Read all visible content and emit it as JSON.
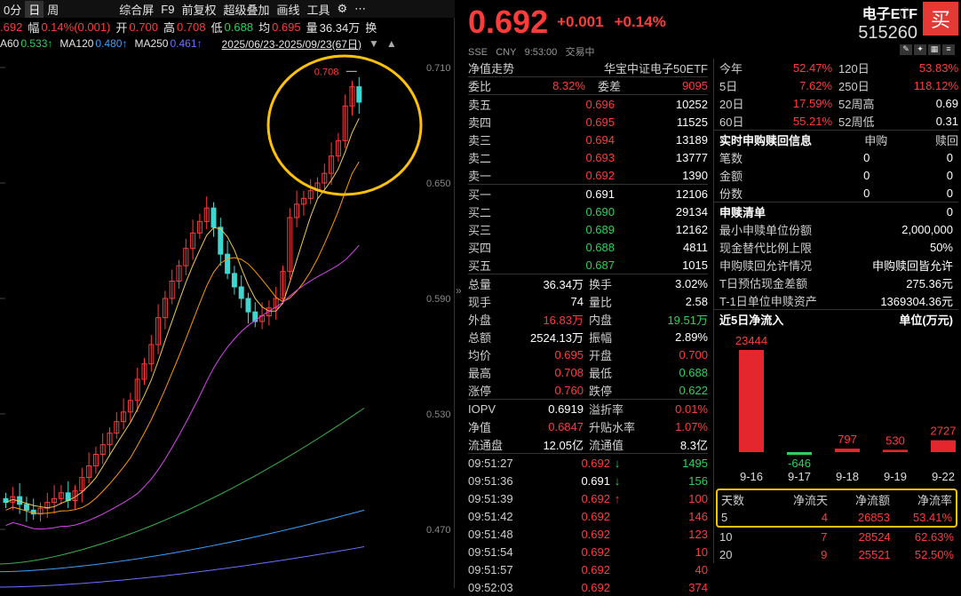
{
  "top_bar": {
    "items": [
      "0分",
      "日",
      "周",
      "综合屏",
      "F9",
      "前复权",
      "超级叠加",
      "画线",
      "工具"
    ],
    "selected": "日",
    "settings_icon": "gear-icon",
    "more_icon": "more-icon"
  },
  "quote_bar": {
    "price": ".692",
    "amp_label": "幅",
    "change": "0.14%(0.001)",
    "open_label": "开",
    "open": "0.700",
    "high_label": "高",
    "high": "0.708",
    "low_label": "低",
    "low": "0.688",
    "avg_label": "均",
    "avg": "0.695",
    "vol_label": "量",
    "vol": "36.34万",
    "swap_label": "换"
  },
  "ma_bar": {
    "ma60_label": "A60",
    "ma60": "0.533↑",
    "ma120_label": "MA120",
    "ma120": "0.480↑",
    "ma250_label": "MA250",
    "ma250": "0.461↑",
    "range": "2025/06/23-2025/09/23(67日)"
  },
  "chart_data": {
    "type": "candlestick",
    "y_ticks": [
      "0.710",
      "0.650",
      "0.590",
      "0.530",
      "0.470"
    ],
    "high_marker": "0.708",
    "colors": {
      "up": "#ff3b3b",
      "down": "#3fd6d0",
      "ma5": "#ffffff",
      "ma10": "#f2c94c",
      "ma20": "#ff9800",
      "ma30": "#d946ef",
      "ma60": "#38b24a",
      "ma120": "#3aa0ff",
      "ma250": "#6b73ff",
      "highlight": "#ffc107"
    }
  },
  "header": {
    "price": "0.692",
    "change": "+0.001",
    "change_pct": "+0.14%",
    "name": "电子ETF",
    "code": "515260",
    "buy_label": "买",
    "market": "SSE",
    "currency": "CNY",
    "time": "9:53:00",
    "status": "交易中"
  },
  "nav": {
    "label": "净值走势",
    "index": "华宝中证电子50ETF"
  },
  "weibi": {
    "label": "委比",
    "value": "8.32%",
    "diff_label": "委差",
    "diff": "9095"
  },
  "asks": [
    {
      "label": "卖五",
      "price": "0.696",
      "vol": "10252"
    },
    {
      "label": "卖四",
      "price": "0.695",
      "vol": "11525"
    },
    {
      "label": "卖三",
      "price": "0.694",
      "vol": "13189"
    },
    {
      "label": "卖二",
      "price": "0.693",
      "vol": "13777"
    },
    {
      "label": "卖一",
      "price": "0.692",
      "vol": "1390"
    }
  ],
  "bids": [
    {
      "label": "买一",
      "price": "0.691",
      "vol": "12106"
    },
    {
      "label": "买二",
      "price": "0.690",
      "vol": "29134"
    },
    {
      "label": "买三",
      "price": "0.689",
      "vol": "12162"
    },
    {
      "label": "买四",
      "price": "0.688",
      "vol": "4811"
    },
    {
      "label": "买五",
      "price": "0.687",
      "vol": "1015"
    }
  ],
  "stats": [
    {
      "l1": "总量",
      "v1": "36.34万",
      "c1": "white",
      "l2": "换手",
      "v2": "3.02%",
      "c2": "white"
    },
    {
      "l1": "现手",
      "v1": "74",
      "c1": "white",
      "l2": "量比",
      "v2": "2.58",
      "c2": "white"
    },
    {
      "l1": "外盘",
      "v1": "16.83万",
      "c1": "red",
      "l2": "内盘",
      "v2": "19.51万",
      "c2": "green"
    },
    {
      "l1": "总额",
      "v1": "2524.13万",
      "c1": "white",
      "l2": "振幅",
      "v2": "2.89%",
      "c2": "white"
    },
    {
      "l1": "均价",
      "v1": "0.695",
      "c1": "red",
      "l2": "开盘",
      "v2": "0.700",
      "c2": "red"
    },
    {
      "l1": "最高",
      "v1": "0.708",
      "c1": "red",
      "l2": "最低",
      "v2": "0.688",
      "c2": "green"
    },
    {
      "l1": "涨停",
      "v1": "0.760",
      "c1": "red",
      "l2": "跌停",
      "v2": "0.622",
      "c2": "green"
    }
  ],
  "iopv": [
    {
      "l1": "IOPV",
      "v1": "0.6919",
      "c1": "white",
      "l2": "溢折率",
      "v2": "0.01%",
      "c2": "red"
    },
    {
      "l1": "净值",
      "v1": "0.6847",
      "c1": "red",
      "l2": "升贴水率",
      "v2": "1.07%",
      "c2": "red"
    },
    {
      "l1": "流通盘",
      "v1": "12.05亿",
      "c1": "white",
      "l2": "流通值",
      "v2": "8.3亿",
      "c2": "white"
    }
  ],
  "ticks": [
    {
      "time": "09:51:27",
      "price": "0.692",
      "pc": "red",
      "arrow": "↓",
      "ac": "green",
      "vol": "1495",
      "vc": "green"
    },
    {
      "time": "09:51:36",
      "price": "0.691",
      "pc": "white",
      "arrow": "↓",
      "ac": "green",
      "vol": "156",
      "vc": "green"
    },
    {
      "time": "09:51:39",
      "price": "0.692",
      "pc": "red",
      "arrow": "↑",
      "ac": "red",
      "vol": "100",
      "vc": "red"
    },
    {
      "time": "09:51:42",
      "price": "0.692",
      "pc": "red",
      "arrow": "",
      "ac": "red",
      "vol": "146",
      "vc": "red"
    },
    {
      "time": "09:51:48",
      "price": "0.692",
      "pc": "red",
      "arrow": "",
      "ac": "red",
      "vol": "123",
      "vc": "red"
    },
    {
      "time": "09:51:54",
      "price": "0.692",
      "pc": "red",
      "arrow": "",
      "ac": "red",
      "vol": "10",
      "vc": "red"
    },
    {
      "time": "09:51:57",
      "price": "0.692",
      "pc": "red",
      "arrow": "",
      "ac": "red",
      "vol": "40",
      "vc": "red"
    },
    {
      "time": "09:52:03",
      "price": "0.692",
      "pc": "red",
      "arrow": "",
      "ac": "red",
      "vol": "374",
      "vc": "red"
    }
  ],
  "perf": [
    {
      "l1": "今年",
      "v1": "52.47%",
      "l2": "120日",
      "v2": "53.83%",
      "c2": "red"
    },
    {
      "l1": "5日",
      "v1": "7.62%",
      "l2": "250日",
      "v2": "118.12%",
      "c2": "red"
    },
    {
      "l1": "20日",
      "v1": "17.59%",
      "l2": "52周高",
      "v2": "0.69",
      "c2": "white"
    },
    {
      "l1": "60日",
      "v1": "55.21%",
      "l2": "52周低",
      "v2": "0.31",
      "c2": "white"
    }
  ],
  "subs": {
    "title": "实时申购赎回信息",
    "c1": "申购",
    "c2": "赎回",
    "rows": [
      {
        "l": "笔数",
        "a": "0",
        "b": "0"
      },
      {
        "l": "金额",
        "a": "0",
        "b": "0"
      },
      {
        "l": "份数",
        "a": "0",
        "b": "0"
      }
    ]
  },
  "list": {
    "title": "申赎清单",
    "value": "0",
    "rows": [
      {
        "l": "最小申赎单位份额",
        "v": "2,000,000"
      },
      {
        "l": "现金替代比例上限",
        "v": "50%"
      },
      {
        "l": "申购赎回允许情况",
        "v": "申购赎回皆允许"
      },
      {
        "l": "T日预估现金差额",
        "v": "275.36元"
      },
      {
        "l": "T-1日单位申赎资产",
        "v": "1369304.36元"
      }
    ]
  },
  "flow": {
    "title": "近5日净流入",
    "unit": "单位(万元)",
    "chart_data": {
      "type": "bar",
      "categories": [
        "9-16",
        "9-17",
        "9-18",
        "9-19",
        "9-22"
      ],
      "values": [
        23444,
        -646,
        797,
        530,
        2727
      ]
    },
    "table_head": [
      "天数",
      "净流天",
      "净流额",
      "净流率"
    ],
    "table": [
      {
        "d": "5",
        "n": "4",
        "amt": "26853",
        "rate": "53.41%"
      },
      {
        "d": "10",
        "n": "7",
        "amt": "28524",
        "rate": "62.63%"
      },
      {
        "d": "20",
        "n": "9",
        "amt": "25521",
        "rate": "52.50%"
      }
    ]
  }
}
